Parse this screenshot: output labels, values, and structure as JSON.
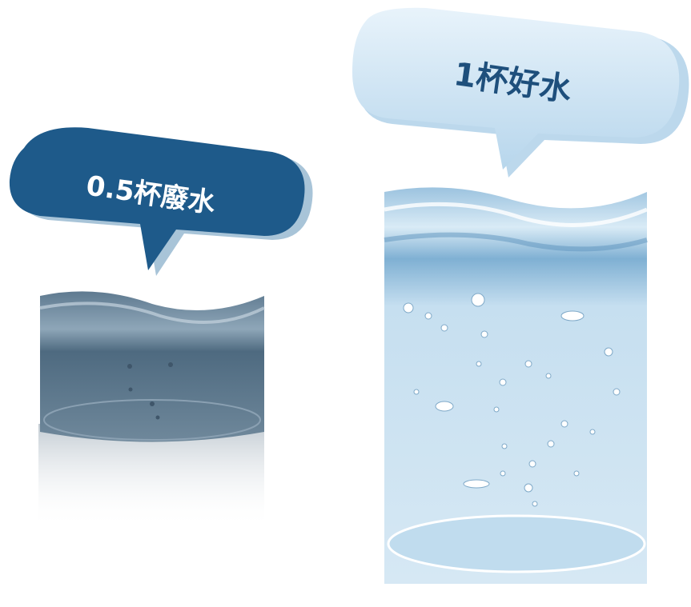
{
  "labels": {
    "waste": "0.5杯廢水",
    "good": "1杯好水"
  }
}
